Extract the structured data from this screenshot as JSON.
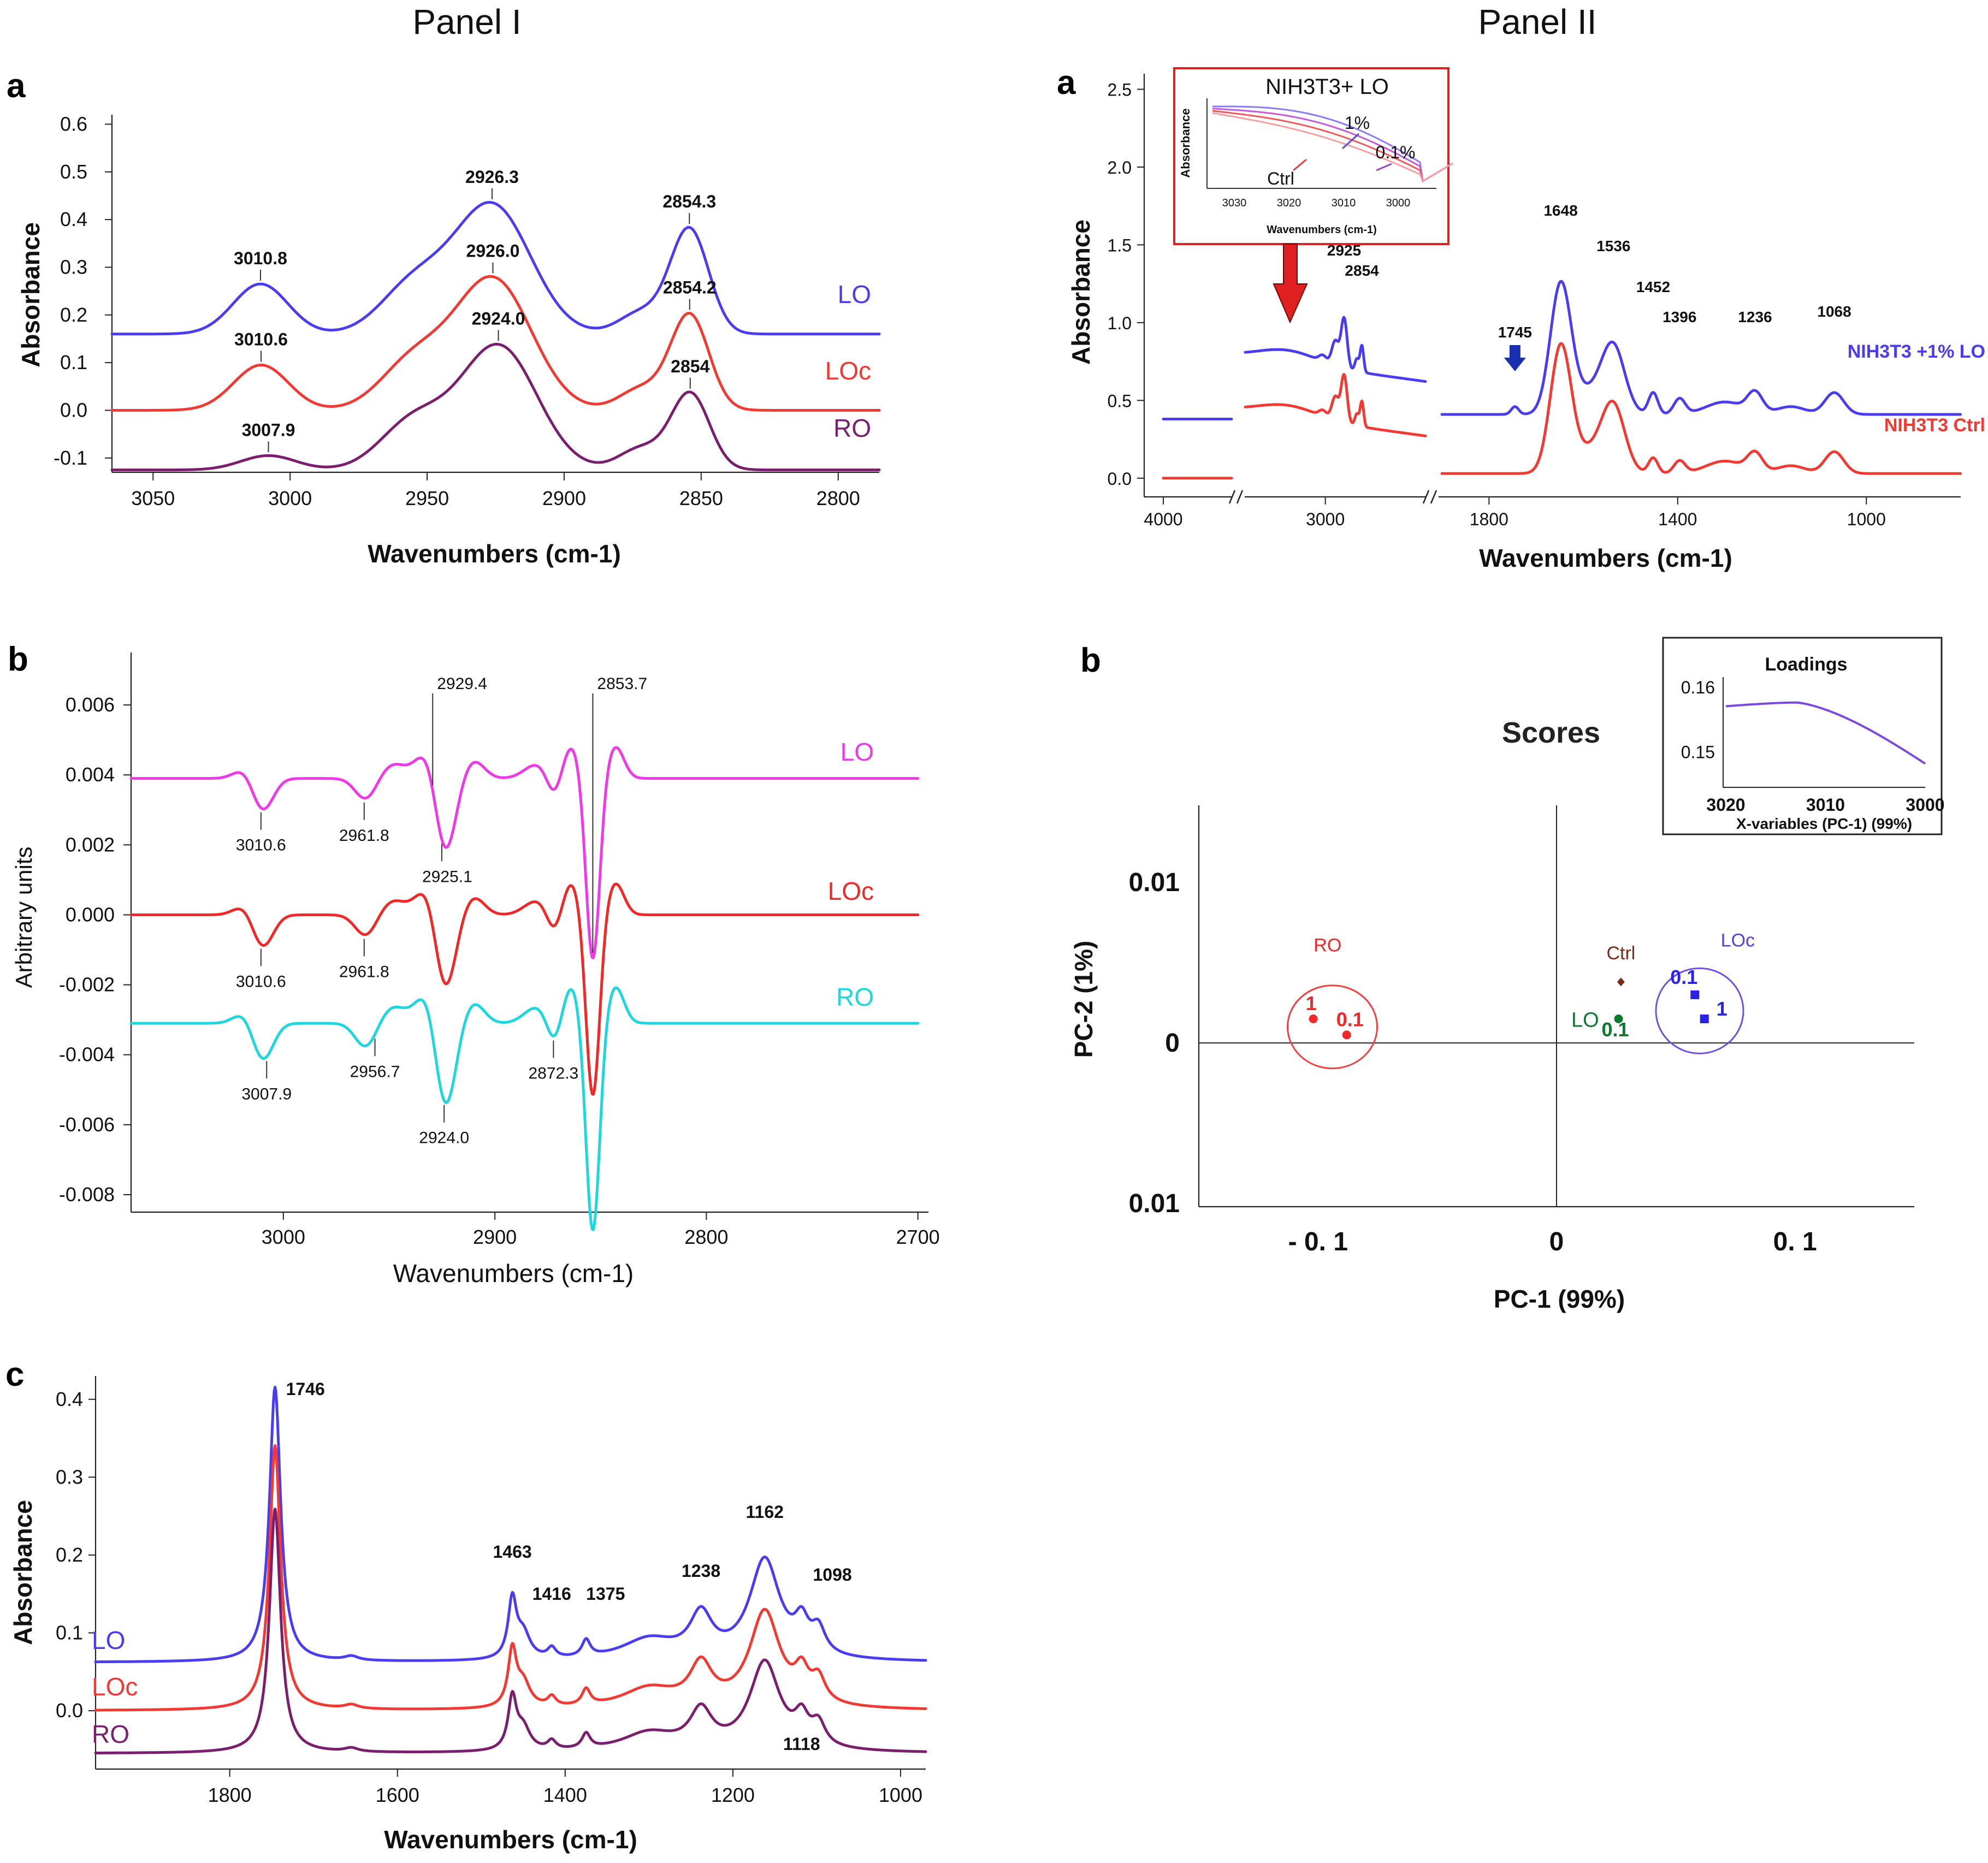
{
  "figure": {
    "panel_titles": [
      "Panel I",
      "Panel II"
    ],
    "sublabels": [
      "a",
      "b",
      "c",
      "a",
      "b"
    ]
  },
  "chart_data": [
    {
      "id": "p1a",
      "type": "line",
      "xlabel": "Wavenumbers (cm-1)",
      "ylabel": "Absorbance",
      "xlim": [
        3065,
        2785
      ],
      "ylim": [
        -0.13,
        0.62
      ],
      "xticks": [
        3050,
        3000,
        2950,
        2900,
        2850,
        2800
      ],
      "yticks": [
        -0.1,
        0.0,
        0.1,
        0.2,
        0.3,
        0.4,
        0.5,
        0.6
      ],
      "yticklabels": [
        "-0.1",
        "0.0",
        "0.1",
        "0.2",
        "0.3",
        "0.4",
        "0.5",
        "0.6"
      ],
      "series": [
        {
          "name": "LO",
          "color": "#4a3df0",
          "baseline": 0.16,
          "peaks": [
            [
              3010.8,
              0.105,
              10
            ],
            [
              2955,
              0.1,
              12
            ],
            [
              2926.3,
              0.27,
              14
            ],
            [
              2872,
              0.045,
              8
            ],
            [
              2854.3,
              0.22,
              7
            ]
          ],
          "labels": [
            [
              "3010.8",
              3010.8
            ],
            [
              "2926.3",
              2926.3
            ],
            [
              "2854.3",
              2854.3
            ]
          ]
        },
        {
          "name": "LOc",
          "color": "#f03a33",
          "baseline": 0.0,
          "peaks": [
            [
              3010.6,
              0.095,
              10
            ],
            [
              2955,
              0.1,
              12
            ],
            [
              2926.0,
              0.275,
              14
            ],
            [
              2872,
              0.045,
              8
            ],
            [
              2854.2,
              0.2,
              7
            ]
          ],
          "labels": [
            [
              "3010.6",
              3010.6
            ],
            [
              "2926.0",
              2926.0
            ],
            [
              "2854.2",
              2854.2
            ]
          ]
        },
        {
          "name": "RO",
          "color": "#7a1f6e",
          "baseline": -0.125,
          "peaks": [
            [
              3007.9,
              0.03,
              10
            ],
            [
              2955,
              0.1,
              12
            ],
            [
              2924.0,
              0.26,
              14
            ],
            [
              2872,
              0.045,
              8
            ],
            [
              2854,
              0.16,
              7
            ]
          ],
          "labels": [
            [
              "3007.9",
              3007.9
            ],
            [
              "2924.0",
              2924.0
            ],
            [
              "2854",
              2854
            ]
          ]
        }
      ]
    },
    {
      "id": "p1b",
      "type": "line",
      "xlabel": "Wavenumbers (cm-1)",
      "ylabel": "Arbitrary units",
      "xlim": [
        3072,
        2695
      ],
      "ylim": [
        -0.0085,
        0.0075
      ],
      "xticks": [
        3000,
        2900,
        2800,
        2700
      ],
      "yticks": [
        -0.008,
        -0.006,
        -0.004,
        -0.002,
        0.0,
        0.002,
        0.004,
        0.006
      ],
      "yticklabels": [
        "-0.008",
        "-0.006",
        "-0.004",
        "-0.002",
        "0.000",
        "0.002",
        "0.004",
        "0.006"
      ],
      "series": [
        {
          "name": "LO",
          "color": "#ef38e8",
          "baseline": 0.0039,
          "scale": 1.0,
          "labels": [
            [
              "3010.6",
              3010.6
            ],
            [
              "2961.8",
              2961.8
            ],
            [
              "2929.4",
              2929.4
            ],
            [
              "2925.1",
              2925.1
            ],
            [
              "2853.7",
              2853.7
            ]
          ]
        },
        {
          "name": "LOc",
          "color": "#f02828",
          "baseline": 0.0,
          "scale": 1.0,
          "labels": [
            [
              "3010.6",
              3010.6
            ],
            [
              "2961.8",
              2961.8
            ]
          ]
        },
        {
          "name": "RO",
          "color": "#1ed6de",
          "baseline": -0.0031,
          "scale": 1.15,
          "labels": [
            [
              "3007.9",
              3007.9
            ],
            [
              "2956.7",
              2956.7
            ],
            [
              "2872.3",
              2872.3
            ],
            [
              "2924.0",
              2924.0
            ]
          ]
        }
      ]
    },
    {
      "id": "p1c",
      "type": "line",
      "xlabel": "Wavenumbers (cm-1)",
      "ylabel": "Absorbance",
      "xlim": [
        1960,
        970
      ],
      "ylim": [
        -0.075,
        0.43
      ],
      "xticks": [
        1800,
        1600,
        1400,
        1200,
        1000
      ],
      "yticks": [
        0.0,
        0.1,
        0.2,
        0.3,
        0.4
      ],
      "yticklabels": [
        "0.0",
        "0.1",
        "0.2",
        "0.3",
        "0.4"
      ],
      "series": [
        {
          "name": "LO",
          "color": "#4a3df0",
          "baseline": 0.062
        },
        {
          "name": "LOc",
          "color": "#f03a33",
          "baseline": 0.0
        },
        {
          "name": "RO",
          "color": "#7a1f6e",
          "baseline": -0.055
        }
      ],
      "peak_labels": [
        "1746",
        "1463",
        "1416",
        "1375",
        "1238",
        "1162",
        "1098",
        "1118"
      ]
    },
    {
      "id": "p2a",
      "type": "line",
      "xlabel": "Wavenumbers (cm-1)",
      "ylabel": "Absorbance",
      "xticks": [
        "4000",
        "3000",
        "1800",
        "1400",
        "1000"
      ],
      "yticks": [
        0.0,
        0.5,
        1.0,
        1.5,
        2.0,
        2.5
      ],
      "yticklabels": [
        "0.0",
        "0.5",
        "1.0",
        "1.5",
        "2.0",
        "2.5"
      ],
      "ylim": [
        -0.12,
        2.6
      ],
      "series": [
        {
          "name": "NIH3T3 +1% LO",
          "color": "#4a3df0",
          "baseline": 0.38
        },
        {
          "name": "NIH3T3 Ctrl",
          "color": "#f03a33",
          "baseline": 0.0
        }
      ],
      "peak_labels": [
        "2925",
        "2854",
        "1745",
        "1648",
        "1536",
        "1452",
        "1396",
        "1236",
        "1068"
      ],
      "inset": {
        "title": "NIH3T3+ LO",
        "ylabel": "Absorbance",
        "xlabel": "Wavenumbers (cm-1)",
        "xticks": [
          "3030",
          "3020",
          "3010",
          "3000"
        ],
        "labels": [
          "1%",
          "0.1%",
          "Ctrl"
        ]
      }
    },
    {
      "id": "p2b",
      "type": "scatter",
      "title": "Scores",
      "xlabel": "PC-1 (99%)",
      "ylabel": "PC-2 (1%)",
      "xticklabels": [
        "- 0. 1",
        "0",
        "0. 1"
      ],
      "yticklabels": [
        "0.01",
        "0",
        "0.01"
      ],
      "points": [
        {
          "group": "RO",
          "label": "1",
          "x": -0.102,
          "y": 0.0015,
          "color": "#f02828"
        },
        {
          "group": "RO",
          "label": "0.1",
          "x": -0.088,
          "y": 0.0005,
          "color": "#f02828"
        },
        {
          "group": "Ctrl",
          "label": "Ctrl",
          "x": 0.027,
          "y": 0.0038,
          "color": "#7a2a18"
        },
        {
          "group": "LO",
          "label": "0.1",
          "x": 0.026,
          "y": 0.0015,
          "color": "#0b7a2a"
        },
        {
          "group": "LOc",
          "label": "0.1",
          "x": 0.058,
          "y": 0.003,
          "color": "#2a22e8"
        },
        {
          "group": "LOc",
          "label": "1",
          "x": 0.062,
          "y": 0.0015,
          "color": "#2a22e8"
        }
      ],
      "group_labels": [
        "RO",
        "Ctrl",
        "LO",
        "LOc"
      ],
      "loadings_inset": {
        "title": "Loadings",
        "xlabel": "X-variables (PC-1) (99%)",
        "xticks": [
          "3020",
          "3010",
          "3000"
        ],
        "yticks": [
          "0.16",
          "0.15"
        ]
      }
    }
  ]
}
